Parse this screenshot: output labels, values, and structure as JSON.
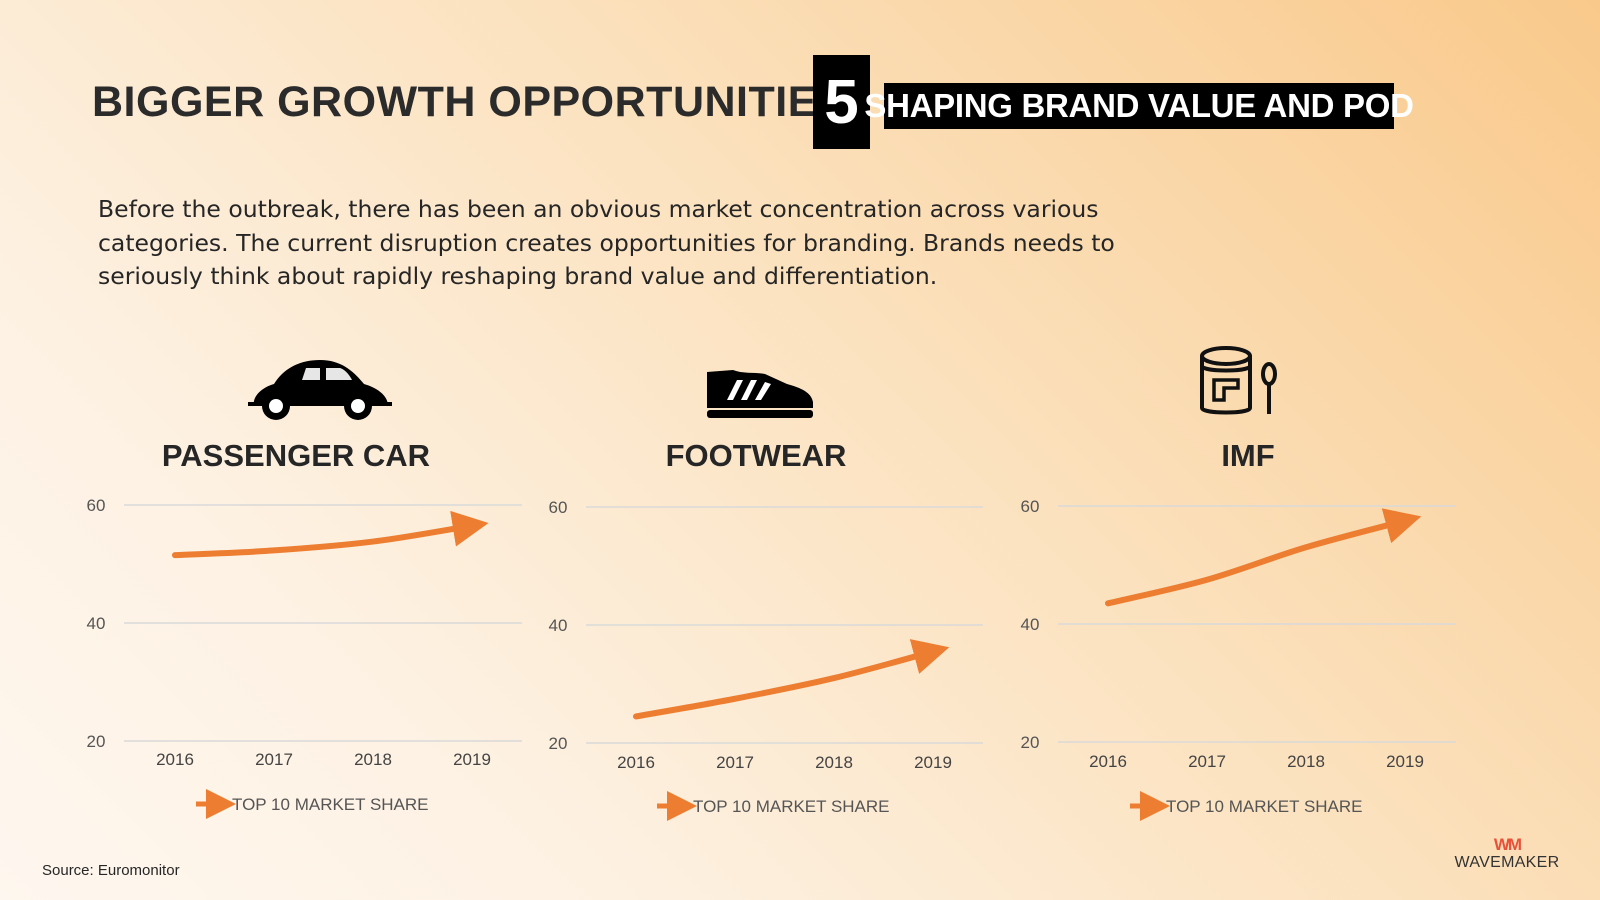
{
  "header": {
    "title": "BIGGER GROWTH OPPORTUNITIES",
    "number": "5",
    "banner": "SHAPING BRAND VALUE AND POD"
  },
  "intro": "Before the outbreak, there has been an obvious market concentration across various categories. The current disruption creates opportunities for branding. Brands needs to seriously think about rapidly reshaping brand value and differentiation.",
  "colors": {
    "line": "#ed7d31",
    "grid": "#d9d9d9"
  },
  "panels": [
    {
      "title": "PASSENGER CAR",
      "icon": "car-icon"
    },
    {
      "title": "FOOTWEAR",
      "icon": "sneaker-icon"
    },
    {
      "title": "IMF",
      "icon": "formula-can-icon"
    }
  ],
  "chart_data": [
    {
      "type": "line",
      "title": "PASSENGER CAR",
      "categories": [
        "2016",
        "2017",
        "2018",
        "2019"
      ],
      "series": [
        {
          "name": "TOP 10 MARKET SHARE",
          "values": [
            51.5,
            52.3,
            53.8,
            56.5
          ]
        }
      ],
      "yticks": [
        "20",
        "40",
        "60"
      ],
      "ylim": [
        20,
        60
      ],
      "legend": "bottom"
    },
    {
      "type": "line",
      "title": "FOOTWEAR",
      "categories": [
        "2016",
        "2017",
        "2018",
        "2019"
      ],
      "series": [
        {
          "name": "TOP 10 MARKET SHARE",
          "values": [
            24.5,
            27.5,
            31,
            35.5
          ]
        }
      ],
      "yticks": [
        "20",
        "40",
        "60"
      ],
      "ylim": [
        20,
        60
      ],
      "legend": "bottom"
    },
    {
      "type": "line",
      "title": "IMF",
      "categories": [
        "2016",
        "2017",
        "2018",
        "2019"
      ],
      "series": [
        {
          "name": "TOP 10 MARKET SHARE",
          "values": [
            43.5,
            47.5,
            53,
            57.5
          ]
        }
      ],
      "yticks": [
        "20",
        "40",
        "60"
      ],
      "ylim": [
        20,
        60
      ],
      "legend": "bottom"
    }
  ],
  "footer": {
    "source": "Source: Euromonitor",
    "logo_mark": "WM",
    "logo_text": "WAVEMAKER"
  }
}
